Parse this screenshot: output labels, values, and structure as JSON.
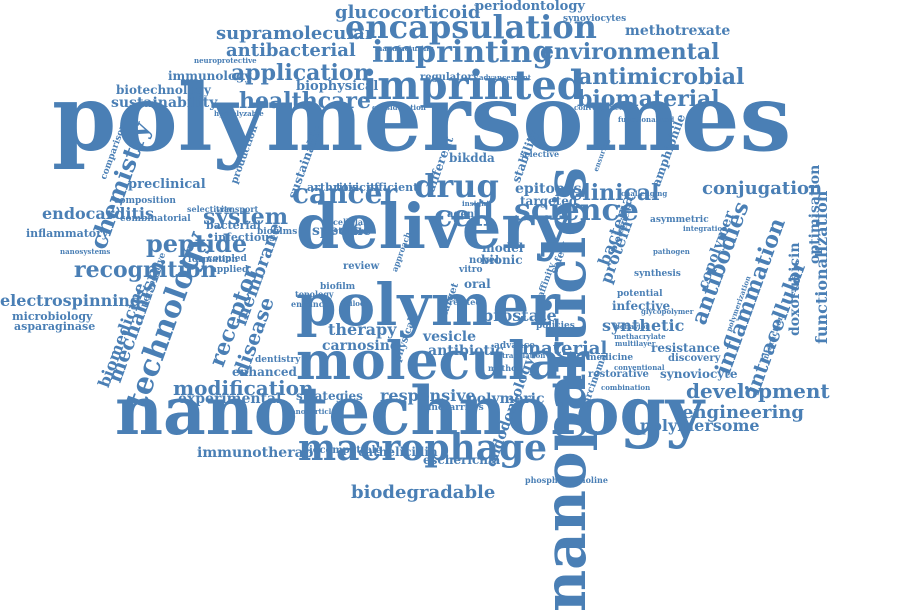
{
  "colors": {
    "word": "#4a7fb5",
    "background": "#ffffff"
  },
  "words": {
    "polymersomes": "polymersomes",
    "nanotechnology": "nanotechnology",
    "nanoparticles": "nanoparticles",
    "delivery": "delivery",
    "polymer": "polymer",
    "molecular": "molecular",
    "imprinted": "imprinted",
    "macrophage": "macrophage",
    "drug": "drug",
    "cancer": "cancer",
    "science": "science",
    "cell": "cell",
    "technology": "technology",
    "encapsulation": "encapsulation",
    "imprinting": "imprinting",
    "environmental": "environmental",
    "antimicrobial": "antimicrobial",
    "application": "application",
    "healthcare": "healthcare",
    "biomaterial": "biomaterial",
    "chemistry": "chemistry",
    "system": "system",
    "peptide": "peptide",
    "recognition": "recognition",
    "clinical": "clinical",
    "conjugation": "conjugation",
    "receptor": "receptor",
    "disease": "disease",
    "mechanism": "mechanism",
    "membrane": "membrane",
    "modification": "modification",
    "antibodies": "antibodies",
    "inflammation": "inflammation",
    "intracellular": "intracellular",
    "development": "development",
    "engineering": "engineering",
    "biodegradable": "biodegradable",
    "immunotherapy": "immunotherapy",
    "endodontology": "endodontology",
    "polymersome": "polymersome",
    "glucocorticoid": "glucocorticoid",
    "periodontology": "periodontology",
    "supramolecular": "supramolecular",
    "antibacterial": "antibacterial",
    "methotrexate": "methotrexate",
    "sustainability": "sustainability",
    "biotechnology": "biotechnology",
    "immunology": "immunology",
    "biophysical": "biophysical",
    "electrospinning": "electrospinning",
    "endocarditis": "endocarditis",
    "preclinical": "preclinical",
    "biomedicine": "biomedicine",
    "carnosine": "carnosine",
    "antibiotic": "antibiotic",
    "material": "material",
    "prostate": "prostate",
    "vesicle": "vesicle",
    "therapy": "therapy",
    "specific": "specific",
    "responsive": "responsive",
    "polymeric": "polymeric",
    "strategies": "strategies",
    "enhanced": "enhanced",
    "experimental": "experimental",
    "cathelicidin": "cathelicidin",
    "escherichia": "escherichia",
    "synthetic": "synthetic",
    "protein": "protein",
    "bacteria": "bacteria",
    "infective": "infective",
    "resistance": "resistance",
    "copolymer": "copolymer",
    "doxorubicin": "doxorubicin",
    "optimisation": "optimisation",
    "functionalization": "functionalization",
    "synoviocyte": "synoviocyte",
    "epitopes": "epitopes",
    "targeted": "targeted",
    "sustainable": "sustainable",
    "bikdda": "bikdda",
    "stability": "stability",
    "different": "different",
    "amphiphile": "amphiphile",
    "bionic": "bionic",
    "model": "model",
    "efficient": "efficient",
    "toxicity": "toxicity",
    "arthritis": "arthritis",
    "infectious": "infectious",
    "bacterial": "bacterial",
    "biofilms": "biofilms",
    "inflammatory": "inflammatory",
    "microbiology": "microbiology",
    "asparaginase": "asparaginase",
    "combinatorial": "combinatorial",
    "formation": "formation",
    "dentistry": "dentistry",
    "biocompatible": "biocompatible",
    "nanocarriers": "nanocarriers",
    "carcinoma": "carcinoma",
    "discovery": "discovery",
    "medicine": "medicine",
    "restorative": "restorative",
    "advance": "advance",
    "policies": "policies",
    "review": "review",
    "oral": "oral",
    "novel": "novel",
    "synoviocytes": "synoviocytes",
    "regulatory": "regulatory",
    "neuroprotective": "neuroprotective",
    "manufacturing": "manufacturing",
    "production": "production",
    "comparison": "comparison",
    "composition": "composition",
    "agent": "agent",
    "cellular": "cellular",
    "studies": "studies",
    "synthesis": "synthesis",
    "biological": "biological",
    "potential": "potential",
    "phosphorylcholine": "phosphorylcholine",
    "functionalized": "functionalized",
    "asymmetric": "asymmetric",
    "integration": "integration",
    "safety": "safety",
    "affinity": "affinity",
    "biofilm": "biofilm",
    "nanosystems": "nanosystems",
    "perspective": "perspective",
    "hydrolyzable": "hydrolyzable",
    "coupled": "coupled",
    "applied": "applied",
    "transport": "transport",
    "selectivity": "selectivity",
    "topology": "topology",
    "enhance": "enhance",
    "nanoparticle": "nanoparticle",
    "trilock": "trilock",
    "selective": "selective",
    "advancement": "advancement",
    "convergence": "convergence",
    "consideration": "consideration",
    "physical": "physical",
    "target": "target",
    "approach": "approach",
    "related": "related",
    "vitro": "vitro",
    "method": "method",
    "translation": "translation",
    "conventional": "conventional",
    "combination": "combination",
    "multilayer": "multilayer",
    "interaction": "interaction",
    "polymerization": "polymerization",
    "behavior": "behavior",
    "challenging": "challenging",
    "pathogen": "pathogen",
    "methacrylate": "methacrylate",
    "ensuring": "ensuring",
    "glycopolymer": "glycopolymer",
    "insight": "insight"
  }
}
